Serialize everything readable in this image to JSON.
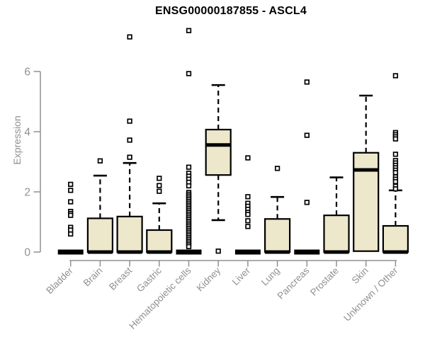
{
  "title": "ENSG00000187855 - ASCL4",
  "colors": {
    "background": "#ffffff",
    "box_fill": "#EDE7CB",
    "box_border": "#000000",
    "median": "#000000",
    "whisker": "#000000",
    "outlier_stroke": "#000000",
    "outlier_fill": "#ffffff",
    "axis": "#909090",
    "axis_text": "#909090",
    "title_text": "#000000"
  },
  "chart_data": {
    "type": "boxplot",
    "title": "ENSG00000187855 - ASCL4",
    "xlabel": "",
    "ylabel": "Expression",
    "ylim": [
      0,
      7.6
    ],
    "yticks": [
      0,
      2,
      4,
      6
    ],
    "grid": false,
    "legend": "none",
    "categories": [
      "Bladder",
      "Brain",
      "Breast",
      "Gastric",
      "Hematopoietic cells",
      "Kidney",
      "Liver",
      "Lung",
      "Pancreas",
      "Prostate",
      "Skin",
      "Unknown / Other"
    ],
    "series": [
      {
        "name": "Bladder",
        "q1": 0,
        "median": 0,
        "q3": 0,
        "whisker_low": 0,
        "whisker_high": 0,
        "outliers": [
          2.25,
          2.05,
          1.67,
          1.35,
          1.28,
          1.22,
          0.82,
          0.73,
          0.6
        ]
      },
      {
        "name": "Brain",
        "q1": 0,
        "median": 0,
        "q3": 1.12,
        "whisker_low": 0,
        "whisker_high": 2.54,
        "outliers": [
          3.03
        ]
      },
      {
        "name": "Breast",
        "q1": 0,
        "median": 0,
        "q3": 1.18,
        "whisker_low": 0,
        "whisker_high": 2.96,
        "outliers": [
          7.15,
          4.35,
          3.72,
          3.15
        ]
      },
      {
        "name": "Gastric",
        "q1": 0,
        "median": 0,
        "q3": 0.73,
        "whisker_low": 0,
        "whisker_high": 1.62,
        "outliers": [
          2.45,
          2.21,
          2.02
        ]
      },
      {
        "name": "Hematopoietic cells",
        "q1": 0,
        "median": 0,
        "q3": 0,
        "whisker_low": 0,
        "whisker_high": 0,
        "outliers": [
          7.36,
          5.93,
          2.82,
          2.62,
          2.52,
          2.42,
          2.32,
          2.2,
          1.98,
          1.92,
          1.86,
          1.8,
          1.74,
          1.68,
          1.62,
          1.56,
          1.5,
          1.44,
          1.38,
          1.32,
          1.26,
          1.2,
          1.14,
          1.08,
          1.02,
          0.96,
          0.9,
          0.84,
          0.78,
          0.72,
          0.66,
          0.6,
          0.54,
          0.48,
          0.42,
          0.36,
          0.3,
          0.24,
          0.18
        ]
      },
      {
        "name": "Kidney",
        "q1": 2.56,
        "median": 3.56,
        "q3": 4.07,
        "whisker_low": 1.06,
        "whisker_high": 5.55,
        "outliers": [
          0.03
        ]
      },
      {
        "name": "Liver",
        "q1": 0,
        "median": 0,
        "q3": 0,
        "whisker_low": 0,
        "whisker_high": 0,
        "outliers": [
          3.13,
          1.84,
          1.62,
          1.52,
          1.42,
          1.32,
          1.25,
          1.04,
          0.85
        ]
      },
      {
        "name": "Lung",
        "q1": 0,
        "median": 0,
        "q3": 1.1,
        "whisker_low": 0,
        "whisker_high": 1.83,
        "outliers": [
          2.78
        ]
      },
      {
        "name": "Pancreas",
        "q1": 0,
        "median": 0,
        "q3": 0,
        "whisker_low": 0,
        "whisker_high": 0,
        "outliers": [
          5.65,
          3.88,
          1.65
        ]
      },
      {
        "name": "Prostate",
        "q1": 0,
        "median": 0,
        "q3": 1.22,
        "whisker_low": 0,
        "whisker_high": 2.48,
        "outliers": []
      },
      {
        "name": "Skin",
        "q1": 0.03,
        "median": 2.73,
        "q3": 3.3,
        "whisker_low": 0.03,
        "whisker_high": 5.2,
        "outliers": []
      },
      {
        "name": "Unknown / Other",
        "q1": 0,
        "median": 0,
        "q3": 0.87,
        "whisker_low": 0,
        "whisker_high": 2.05,
        "outliers": [
          5.86,
          3.97,
          3.9,
          3.83,
          3.76,
          3.25,
          3.04,
          2.96,
          2.88,
          2.8,
          2.72,
          2.64,
          2.5,
          2.42,
          2.34,
          2.19,
          2.1
        ]
      }
    ]
  }
}
